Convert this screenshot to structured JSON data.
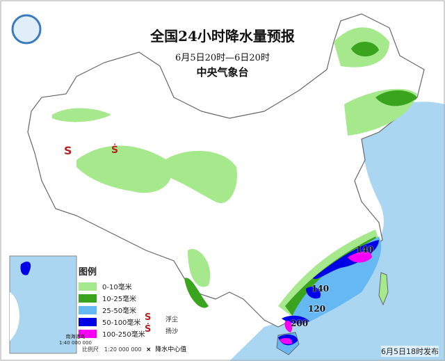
{
  "title": "全国24小时降水量预报",
  "period": "6月5日20时—6日20时",
  "issuer": "中央气象台",
  "legend": {
    "title": "图例",
    "items": [
      {
        "label": "0-10毫米",
        "color": "#a6e88c"
      },
      {
        "label": "10-25毫米",
        "color": "#3ba41e"
      },
      {
        "label": "25-50毫米",
        "color": "#66b8f2"
      },
      {
        "label": "50-100毫米",
        "color": "#0000e6"
      },
      {
        "label": "100-250毫米",
        "color": "#f500f5"
      }
    ],
    "symbols": [
      {
        "glyph": "S",
        "label": "浮尘"
      },
      {
        "glyph": "Ṡ",
        "label": "扬沙"
      },
      {
        "glyph": "×",
        "label": "降水中心值"
      }
    ],
    "scale": "比例尺　1:20 000 000"
  },
  "inset": {
    "label": "南海诸岛",
    "scale": "1:40 000 000"
  },
  "center_values": [
    "140",
    "140",
    "120",
    "200"
  ],
  "issued": "6月5日18时发布",
  "colors": {
    "sea": "#aad6f2",
    "land": "#ffffff",
    "border": "#777777"
  }
}
